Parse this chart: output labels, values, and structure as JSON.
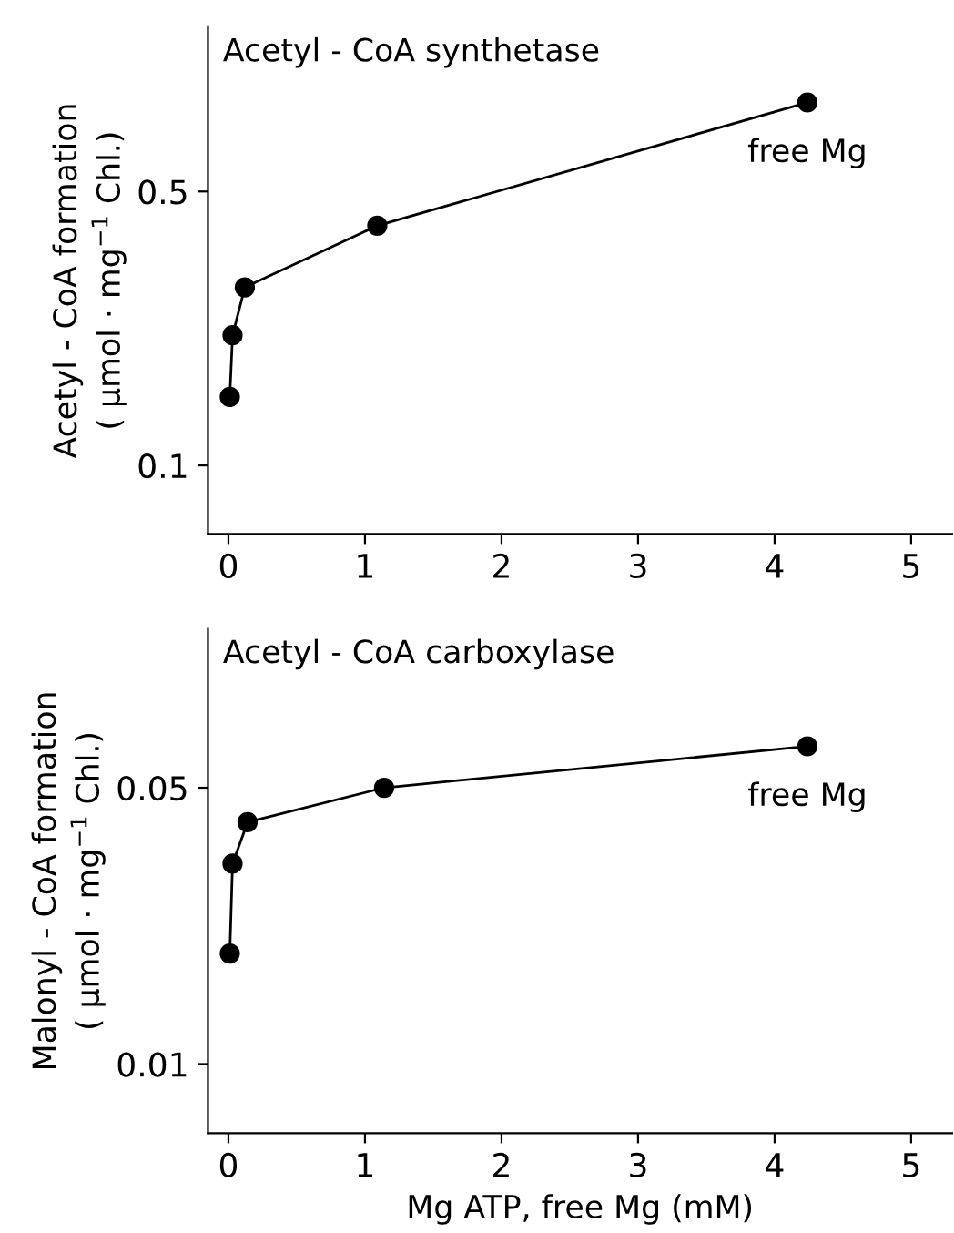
{
  "chart_data": [
    {
      "type": "line",
      "title": "Acetyl - CoA synthetase",
      "ylabel": "Acetyl - CoA formation\n( µmol · mg$^{−1}$ Chl.)",
      "x": [
        0.01,
        0.03,
        0.12,
        1.09,
        4.24
      ],
      "series": [
        {
          "color": "#000000",
          "values": [
            0.2,
            0.29,
            0.36,
            0.45,
            0.63
          ]
        }
      ],
      "xlim": [
        -0.15,
        5.3
      ],
      "xticks": [
        0,
        1,
        2,
        3,
        4,
        5
      ],
      "ylim": [
        0,
        0.74
      ],
      "yticks": [
        0.1,
        0.5
      ],
      "marker": "circle",
      "line_style": "solid",
      "grid": false,
      "annotations": [
        {
          "text": "free Mg",
          "x": 4.24,
          "y": 0.63
        }
      ]
    },
    {
      "type": "line",
      "title": "Acetyl - CoA carboxylase",
      "ylabel": "Malonyl - CoA formation\n( µmol · mg$^{−1}$ Chl.)",
      "xlabel": "Mg ATP, free Mg (mM)",
      "x": [
        0.01,
        0.03,
        0.14,
        1.14,
        4.24
      ],
      "series": [
        {
          "color": "#000000",
          "values": [
            0.026,
            0.039,
            0.045,
            0.05,
            0.056
          ]
        }
      ],
      "xlim": [
        -0.15,
        5.3
      ],
      "xticks": [
        0,
        1,
        2,
        3,
        4,
        5
      ],
      "ylim": [
        0,
        0.073
      ],
      "yticks": [
        0.01,
        0.05
      ],
      "marker": "circle",
      "line_style": "solid",
      "grid": false,
      "annotations": [
        {
          "text": "free Mg",
          "x": 4.24,
          "y": 0.056
        }
      ]
    }
  ]
}
